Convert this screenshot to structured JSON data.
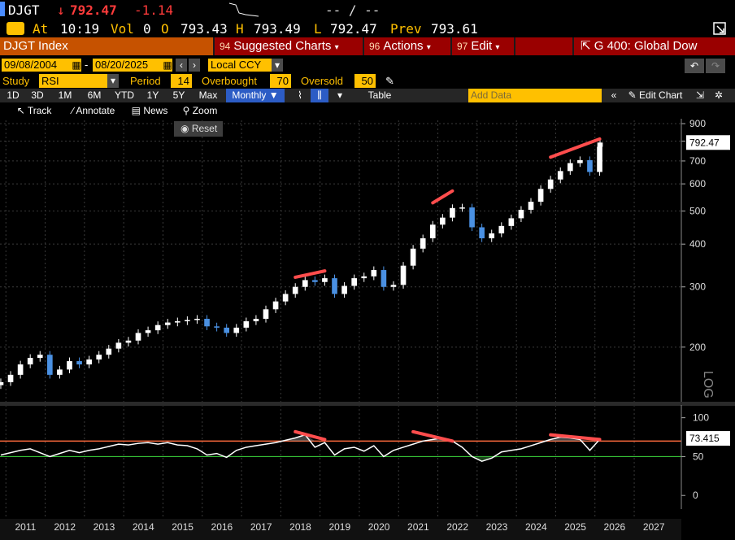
{
  "quote": {
    "ticker": "DJGT",
    "arrow": "↓",
    "last": "792.47",
    "change": "-1.14",
    "bid_ask": "-- / --",
    "at_label": "At",
    "time": "10:19",
    "vol_label": "Vol",
    "vol": "0",
    "open_label": "O",
    "open": "793.43",
    "high_label": "H",
    "high": "793.49",
    "low_label": "L",
    "low": "792.47",
    "prev_label": "Prev",
    "prev": "793.61"
  },
  "header": {
    "security": "DJGT Index",
    "suggested_num": "94",
    "suggested": "Suggested Charts",
    "actions_num": "96",
    "actions": "Actions",
    "edit_num": "97",
    "edit": "Edit",
    "function_title": "G 400: Global Dow"
  },
  "dates": {
    "start": "09/08/2004",
    "end": "08/20/2025",
    "currency": "Local CCY"
  },
  "study": {
    "study_label": "Study",
    "study_value": "RSI",
    "period_label": "Period",
    "period_value": "14",
    "overbought_label": "Overbought",
    "overbought_value": "70",
    "oversold_label": "Oversold",
    "oversold_value": "50"
  },
  "toolbar": {
    "ranges": [
      "1D",
      "3D",
      "1M",
      "6M",
      "YTD",
      "1Y",
      "5Y",
      "Max"
    ],
    "frequency": "Monthly",
    "table": "Table",
    "add_data_placeholder": "Add Data",
    "edit_chart": "Edit Chart"
  },
  "subbar": {
    "track": "Track",
    "annotate": "Annotate",
    "news": "News",
    "zoom": "Zoom",
    "reset": "Reset"
  },
  "colors": {
    "up_candle": "#ffffff",
    "down_candle": "#4a90e2",
    "trendline": "#ff4d4d",
    "rsi_line": "#ffffff",
    "overbought_line": "#ff6a3d",
    "oversold_line": "#3ddc3d",
    "accent_orange": "#c65200",
    "field_yellow": "#ffc000"
  },
  "chart_data": [
    {
      "type": "line",
      "subtype": "candlestick",
      "scale": "log",
      "y_ticks": [
        200,
        300,
        400,
        500,
        600,
        700,
        800,
        900
      ],
      "y_tick_labels": [
        "200",
        "300",
        "400",
        "500",
        "600",
        "700",
        "800",
        "900"
      ],
      "ylabel": "LOG",
      "ylim": [
        140,
        920
      ],
      "last_value_label": "792.47",
      "x_ticks": [
        "2011",
        "2012",
        "2013",
        "2014",
        "2015",
        "2016",
        "2017",
        "2018",
        "2019",
        "2020",
        "2021",
        "2022",
        "2023",
        "2024",
        "2025",
        "2026",
        "2027"
      ],
      "xlim": [
        2010.35,
        2027.7
      ],
      "series": [
        {
          "values": [
            [
              2010.37,
              158
            ],
            [
              2010.62,
              166
            ],
            [
              2010.87,
              178
            ],
            [
              2011.12,
              186
            ],
            [
              2011.37,
              190
            ],
            [
              2011.62,
              166
            ],
            [
              2011.87,
              172
            ],
            [
              2012.12,
              182
            ],
            [
              2012.37,
              178
            ],
            [
              2012.62,
              184
            ],
            [
              2012.87,
              190
            ],
            [
              2013.12,
              198
            ],
            [
              2013.37,
              206
            ],
            [
              2013.62,
              209
            ],
            [
              2013.87,
              220
            ],
            [
              2014.12,
              224
            ],
            [
              2014.37,
              232
            ],
            [
              2014.62,
              236
            ],
            [
              2014.87,
              238
            ],
            [
              2015.12,
              240
            ],
            [
              2015.37,
              242
            ],
            [
              2015.62,
              230
            ],
            [
              2015.87,
              228
            ],
            [
              2016.12,
              220
            ],
            [
              2016.37,
              228
            ],
            [
              2016.62,
              238
            ],
            [
              2016.87,
              242
            ],
            [
              2017.12,
              258
            ],
            [
              2017.37,
              272
            ],
            [
              2017.62,
              286
            ],
            [
              2017.87,
              300
            ],
            [
              2018.12,
              314
            ],
            [
              2018.37,
              310
            ],
            [
              2018.62,
              318
            ],
            [
              2018.87,
              286
            ],
            [
              2019.12,
              302
            ],
            [
              2019.37,
              318
            ],
            [
              2019.62,
              322
            ],
            [
              2019.87,
              336
            ],
            [
              2020.12,
              300
            ],
            [
              2020.37,
              304
            ],
            [
              2020.62,
              346
            ],
            [
              2020.87,
              388
            ],
            [
              2021.12,
              416
            ],
            [
              2021.37,
              456
            ],
            [
              2021.62,
              478
            ],
            [
              2021.87,
              510
            ],
            [
              2022.12,
              512
            ],
            [
              2022.37,
              448
            ],
            [
              2022.62,
              416
            ],
            [
              2022.87,
              430
            ],
            [
              2023.12,
              452
            ],
            [
              2023.37,
              476
            ],
            [
              2023.62,
              504
            ],
            [
              2023.87,
              532
            ],
            [
              2024.12,
              580
            ],
            [
              2024.37,
              618
            ],
            [
              2024.62,
              654
            ],
            [
              2024.87,
              690
            ],
            [
              2025.12,
              704
            ],
            [
              2025.37,
              650
            ],
            [
              2025.62,
              770
            ],
            [
              2025.63,
              792.47
            ]
          ]
        }
      ],
      "annotations": [
        {
          "type": "trendline",
          "from": [
            2017.87,
            320
          ],
          "to": [
            2018.62,
            334
          ]
        },
        {
          "type": "trendline",
          "from": [
            2021.37,
            528
          ],
          "to": [
            2021.87,
            572
          ]
        },
        {
          "type": "trendline",
          "from": [
            2024.37,
            718
          ],
          "to": [
            2025.62,
            812
          ]
        }
      ]
    },
    {
      "type": "line",
      "title": "RSI",
      "y_ticks": [
        0,
        50,
        100
      ],
      "y_tick_labels": [
        "0",
        "50",
        "100"
      ],
      "ylim": [
        -5,
        108
      ],
      "last_value_label": "73.415",
      "overbought": 70,
      "oversold": 50,
      "series": [
        {
          "values": [
            [
              2010.37,
              52
            ],
            [
              2010.62,
              55
            ],
            [
              2010.87,
              58
            ],
            [
              2011.12,
              60
            ],
            [
              2011.37,
              55
            ],
            [
              2011.62,
              50
            ],
            [
              2011.87,
              54
            ],
            [
              2012.12,
              58
            ],
            [
              2012.37,
              55
            ],
            [
              2012.62,
              58
            ],
            [
              2012.87,
              60
            ],
            [
              2013.12,
              63
            ],
            [
              2013.37,
              66
            ],
            [
              2013.62,
              65
            ],
            [
              2013.87,
              67
            ],
            [
              2014.12,
              68
            ],
            [
              2014.37,
              66
            ],
            [
              2014.62,
              68
            ],
            [
              2014.87,
              65
            ],
            [
              2015.12,
              64
            ],
            [
              2015.37,
              60
            ],
            [
              2015.62,
              52
            ],
            [
              2015.87,
              54
            ],
            [
              2016.12,
              49
            ],
            [
              2016.37,
              58
            ],
            [
              2016.62,
              62
            ],
            [
              2016.87,
              64
            ],
            [
              2017.12,
              66
            ],
            [
              2017.37,
              68
            ],
            [
              2017.62,
              71
            ],
            [
              2017.87,
              74
            ],
            [
              2018.12,
              78
            ],
            [
              2018.37,
              62
            ],
            [
              2018.62,
              68
            ],
            [
              2018.87,
              52
            ],
            [
              2019.12,
              60
            ],
            [
              2019.37,
              62
            ],
            [
              2019.62,
              57
            ],
            [
              2019.87,
              64
            ],
            [
              2020.12,
              50
            ],
            [
              2020.37,
              58
            ],
            [
              2020.62,
              62
            ],
            [
              2020.87,
              66
            ],
            [
              2021.12,
              70
            ],
            [
              2021.37,
              72
            ],
            [
              2021.62,
              74
            ],
            [
              2021.87,
              70
            ],
            [
              2022.12,
              62
            ],
            [
              2022.37,
              50
            ],
            [
              2022.62,
              44
            ],
            [
              2022.87,
              48
            ],
            [
              2023.12,
              56
            ],
            [
              2023.37,
              58
            ],
            [
              2023.62,
              60
            ],
            [
              2023.87,
              64
            ],
            [
              2024.12,
              68
            ],
            [
              2024.37,
              72
            ],
            [
              2024.62,
              75
            ],
            [
              2024.87,
              74
            ],
            [
              2025.12,
              72
            ],
            [
              2025.37,
              58
            ],
            [
              2025.62,
              72
            ],
            [
              2025.63,
              73.415
            ]
          ]
        }
      ],
      "annotations": [
        {
          "type": "trendline",
          "from": [
            2017.87,
            82
          ],
          "to": [
            2018.62,
            72
          ]
        },
        {
          "type": "trendline",
          "from": [
            2020.87,
            82
          ],
          "to": [
            2021.87,
            70
          ]
        },
        {
          "type": "trendline",
          "from": [
            2024.37,
            78
          ],
          "to": [
            2025.62,
            72
          ]
        }
      ]
    }
  ]
}
